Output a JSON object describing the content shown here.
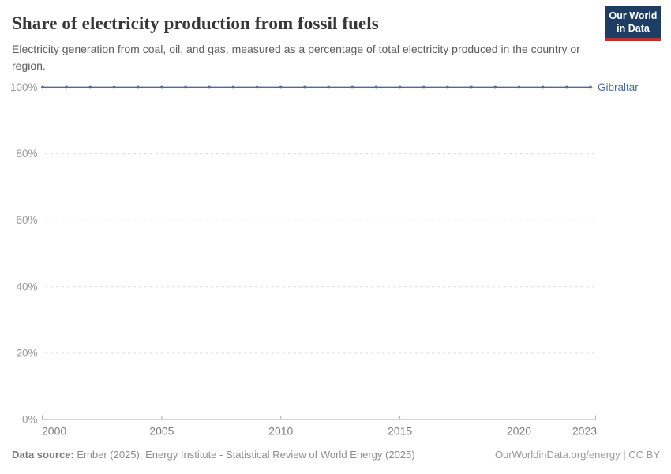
{
  "header": {
    "title": "Share of electricity production from fossil fuels",
    "subtitle": "Electricity generation from coal, oil, and gas, measured as a percentage of total electricity produced in the country or region.",
    "logo": {
      "line1": "Our World",
      "line2": "in Data",
      "bg_color": "#1d3d63",
      "stripe_color": "#c0302f"
    }
  },
  "chart_data": {
    "type": "line",
    "title": "Share of electricity production from fossil fuels",
    "x": [
      2000,
      2001,
      2002,
      2003,
      2004,
      2005,
      2006,
      2007,
      2008,
      2009,
      2010,
      2011,
      2012,
      2013,
      2014,
      2015,
      2016,
      2017,
      2018,
      2019,
      2020,
      2021,
      2022,
      2023
    ],
    "series": [
      {
        "name": "Gibraltar",
        "color": "#4c6a9c",
        "values": [
          100,
          100,
          100,
          100,
          100,
          100,
          100,
          100,
          100,
          100,
          100,
          100,
          100,
          100,
          100,
          100,
          100,
          100,
          100,
          100,
          100,
          100,
          100,
          100
        ]
      }
    ],
    "xlim": [
      2000,
      2023
    ],
    "ylim": [
      0,
      100
    ],
    "ytick_values": [
      0,
      20,
      40,
      60,
      80,
      100
    ],
    "ytick_labels": [
      "0%",
      "20%",
      "40%",
      "60%",
      "80%",
      "100%"
    ],
    "xtick_values": [
      2000,
      2005,
      2010,
      2015,
      2020,
      2023
    ],
    "xtick_labels": [
      "2000",
      "2005",
      "2010",
      "2015",
      "2020",
      "2023"
    ],
    "grid": "horizontal-dashed",
    "legend_position": "end-of-line",
    "end_label": "Gibraltar",
    "marker": "dot"
  },
  "footer": {
    "datasource_label": "Data source:",
    "datasource_text": "Ember (2025); Energy Institute - Statistical Review of World Energy (2025)",
    "origin": "OurWorldinData.org/energy | CC BY"
  }
}
